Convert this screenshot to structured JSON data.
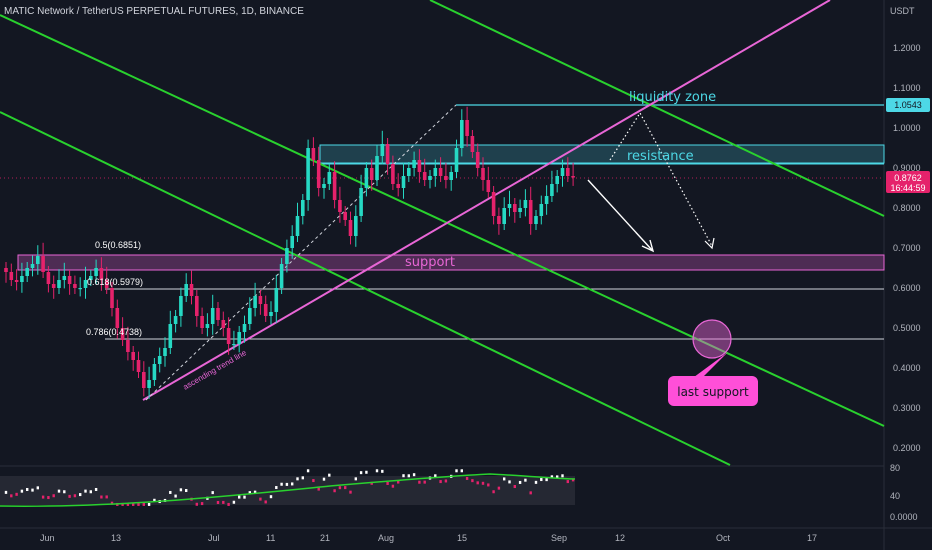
{
  "header": {
    "title": "MATIC Network / TetherUS PERPETUAL FUTURES, 1D, BINANCE",
    "currency": "USDT"
  },
  "colors": {
    "background": "#131722",
    "bull": "#26d9c4",
    "bear": "#e5226b",
    "channel": "#29d12e",
    "trend": "#e866d6",
    "cyan": "#4dd8e6",
    "pink_label": "#ff4fd8"
  },
  "price_badges": {
    "liquidity": "1.0543",
    "last_price": "0.8762",
    "countdown": "16:44:59"
  },
  "annotations": {
    "liquidity_zone": "liquidity zone",
    "resistance": "resistance",
    "support": "support",
    "last_support": "last support",
    "trend_line": "ascending trend line",
    "fib_05": "0.5(0.6851)",
    "fib_0618": "0.618(0.5979)",
    "fib_0786": "0.786(0.4738)"
  },
  "chart_data": {
    "type": "candlestick",
    "title": "MATIC Network / TetherUS PERPETUAL FUTURES, 1D, BINANCE",
    "y_unit": "USDT",
    "ylim": [
      0.11,
      1.32
    ],
    "y_ticks": [
      "1.2000",
      "1.1000",
      "1.0000",
      "0.9000",
      "0.8000",
      "0.7000",
      "0.6000",
      "0.5000",
      "0.4000",
      "0.3000",
      "0.2000"
    ],
    "x_ticks": [
      "Jun",
      "13",
      "Jul",
      "11",
      "21",
      "Aug",
      "15",
      "Sep",
      "12",
      "Oct",
      "17"
    ],
    "levels": {
      "liquidity": 1.0543,
      "resistance_zone": [
        0.91,
        0.955
      ],
      "support_zone": [
        0.648,
        0.685
      ],
      "fib_0_5": 0.6851,
      "fib_0_618": 0.5979,
      "fib_0_786": 0.4738,
      "last_price": 0.8762
    },
    "closes": [
      0.64,
      0.62,
      0.615,
      0.63,
      0.65,
      0.66,
      0.68,
      0.64,
      0.61,
      0.6,
      0.62,
      0.63,
      0.61,
      0.6,
      0.6,
      0.62,
      0.63,
      0.65,
      0.62,
      0.6,
      0.55,
      0.5,
      0.47,
      0.44,
      0.42,
      0.39,
      0.35,
      0.37,
      0.41,
      0.43,
      0.45,
      0.51,
      0.53,
      0.58,
      0.61,
      0.58,
      0.53,
      0.5,
      0.51,
      0.55,
      0.52,
      0.5,
      0.46,
      0.46,
      0.49,
      0.51,
      0.55,
      0.58,
      0.56,
      0.53,
      0.54,
      0.6,
      0.66,
      0.7,
      0.73,
      0.78,
      0.82,
      0.95,
      0.92,
      0.85,
      0.86,
      0.89,
      0.82,
      0.79,
      0.77,
      0.73,
      0.78,
      0.85,
      0.9,
      0.87,
      0.93,
      0.96,
      0.91,
      0.86,
      0.85,
      0.88,
      0.9,
      0.92,
      0.89,
      0.87,
      0.88,
      0.9,
      0.88,
      0.87,
      0.89,
      0.95,
      1.02,
      0.98,
      0.94,
      0.9,
      0.87,
      0.84,
      0.78,
      0.76,
      0.8,
      0.81,
      0.79,
      0.8,
      0.82,
      0.76,
      0.78,
      0.81,
      0.83,
      0.86,
      0.88,
      0.9,
      0.88,
      0.8762
    ],
    "rsi": {
      "ylim": [
        34,
        80
      ],
      "y_ticks": [
        "80",
        "40"
      ]
    }
  }
}
